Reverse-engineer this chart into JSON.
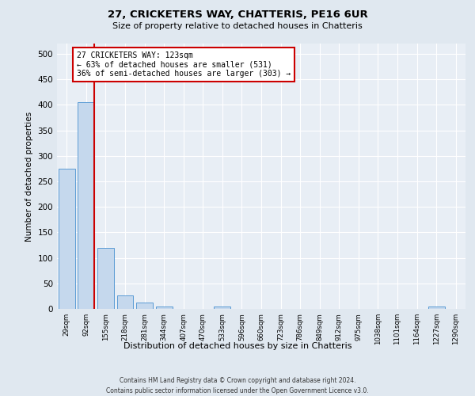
{
  "title": "27, CRICKETERS WAY, CHATTERIS, PE16 6UR",
  "subtitle": "Size of property relative to detached houses in Chatteris",
  "xlabel": "Distribution of detached houses by size in Chatteris",
  "ylabel": "Number of detached properties",
  "footer_line1": "Contains HM Land Registry data © Crown copyright and database right 2024.",
  "footer_line2": "Contains public sector information licensed under the Open Government Licence v3.0.",
  "categories": [
    "29sqm",
    "92sqm",
    "155sqm",
    "218sqm",
    "281sqm",
    "344sqm",
    "407sqm",
    "470sqm",
    "533sqm",
    "596sqm",
    "660sqm",
    "723sqm",
    "786sqm",
    "849sqm",
    "912sqm",
    "975sqm",
    "1038sqm",
    "1101sqm",
    "1164sqm",
    "1227sqm",
    "1290sqm"
  ],
  "values": [
    275,
    405,
    120,
    27,
    13,
    5,
    0,
    0,
    5,
    0,
    0,
    0,
    0,
    0,
    0,
    0,
    0,
    0,
    0,
    5,
    0
  ],
  "bar_color": "#c5d8ed",
  "bar_edge_color": "#5b9bd5",
  "property_line_x": 1.4,
  "annotation_text": "27 CRICKETERS WAY: 123sqm\n← 63% of detached houses are smaller (531)\n36% of semi-detached houses are larger (303) →",
  "annotation_box_color": "#ffffff",
  "annotation_box_edge": "#cc0000",
  "vline_color": "#cc0000",
  "bg_color": "#e0e8f0",
  "plot_bg_color": "#e8eef5",
  "grid_color": "#ffffff",
  "ylim": [
    0,
    520
  ],
  "yticks": [
    0,
    50,
    100,
    150,
    200,
    250,
    300,
    350,
    400,
    450,
    500
  ]
}
